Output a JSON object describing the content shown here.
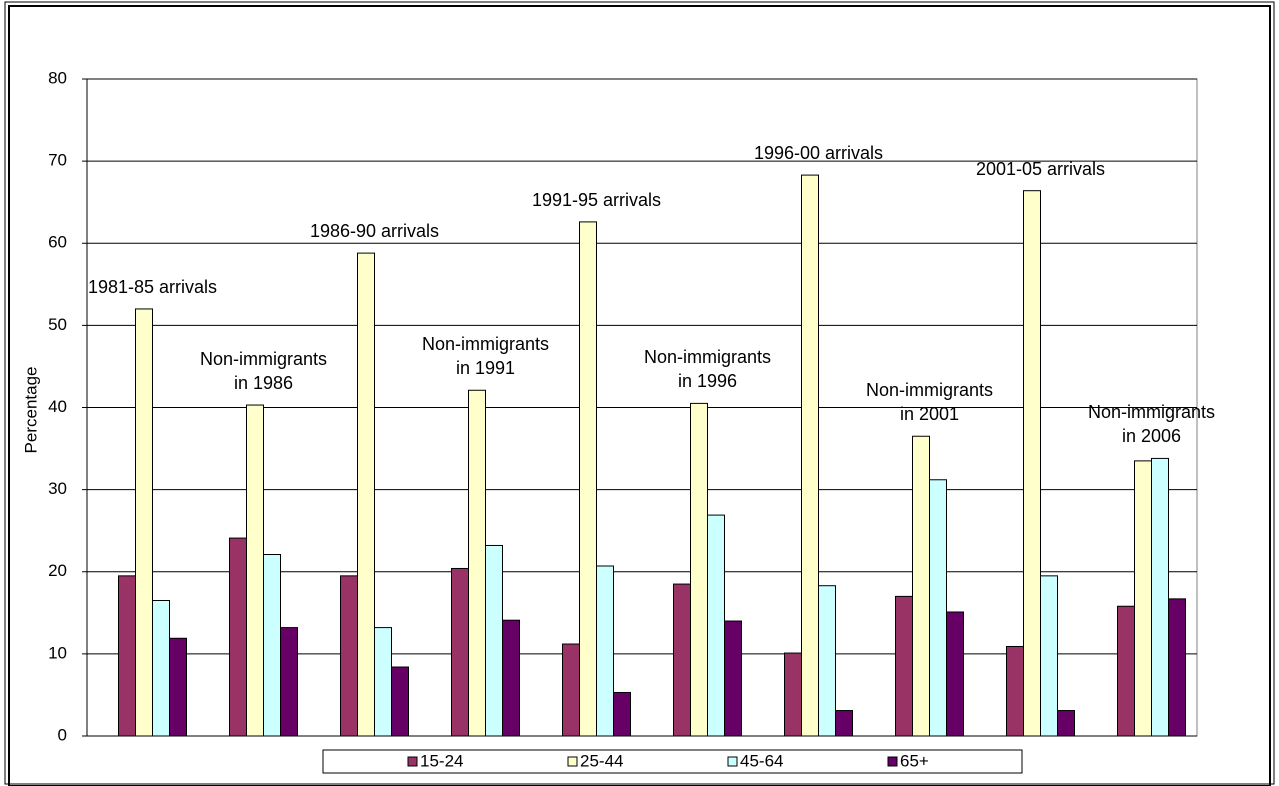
{
  "chart_data": {
    "type": "bar",
    "y_label": "Percentage",
    "categories": [
      "1981-85 arrivals",
      "Non-immigrants\nin 1986",
      "1986-90 arrivals",
      "Non-immigrants\nin 1991",
      "1991-95 arrivals",
      "Non-immigrants\nin 1996",
      "1996-00 arrivals",
      "Non-immigrants\nin 2001",
      "2001-05 arrivals",
      "Non-immigrants\nin 2006"
    ],
    "series": [
      {
        "name": "15-24",
        "color": "#993366",
        "values": [
          19.5,
          24.1,
          19.5,
          20.4,
          11.2,
          18.5,
          10.1,
          17.0,
          10.9,
          15.8
        ]
      },
      {
        "name": "25-44",
        "color": "#ffffcc",
        "values": [
          52.0,
          40.3,
          58.8,
          42.1,
          62.6,
          40.5,
          68.3,
          36.5,
          66.4,
          33.5
        ]
      },
      {
        "name": "45-64",
        "color": "#ccffff",
        "values": [
          16.5,
          22.1,
          13.2,
          23.2,
          20.7,
          26.9,
          18.3,
          31.2,
          19.5,
          33.8
        ]
      },
      {
        "name": "65+",
        "color": "#660066",
        "values": [
          11.9,
          13.2,
          8.4,
          14.1,
          5.3,
          14.0,
          3.1,
          15.1,
          3.1,
          16.7
        ]
      }
    ],
    "ylim": [
      0,
      80
    ],
    "yticks": [
      0,
      10,
      20,
      30,
      40,
      50,
      60,
      70,
      80
    ],
    "grid": true
  }
}
